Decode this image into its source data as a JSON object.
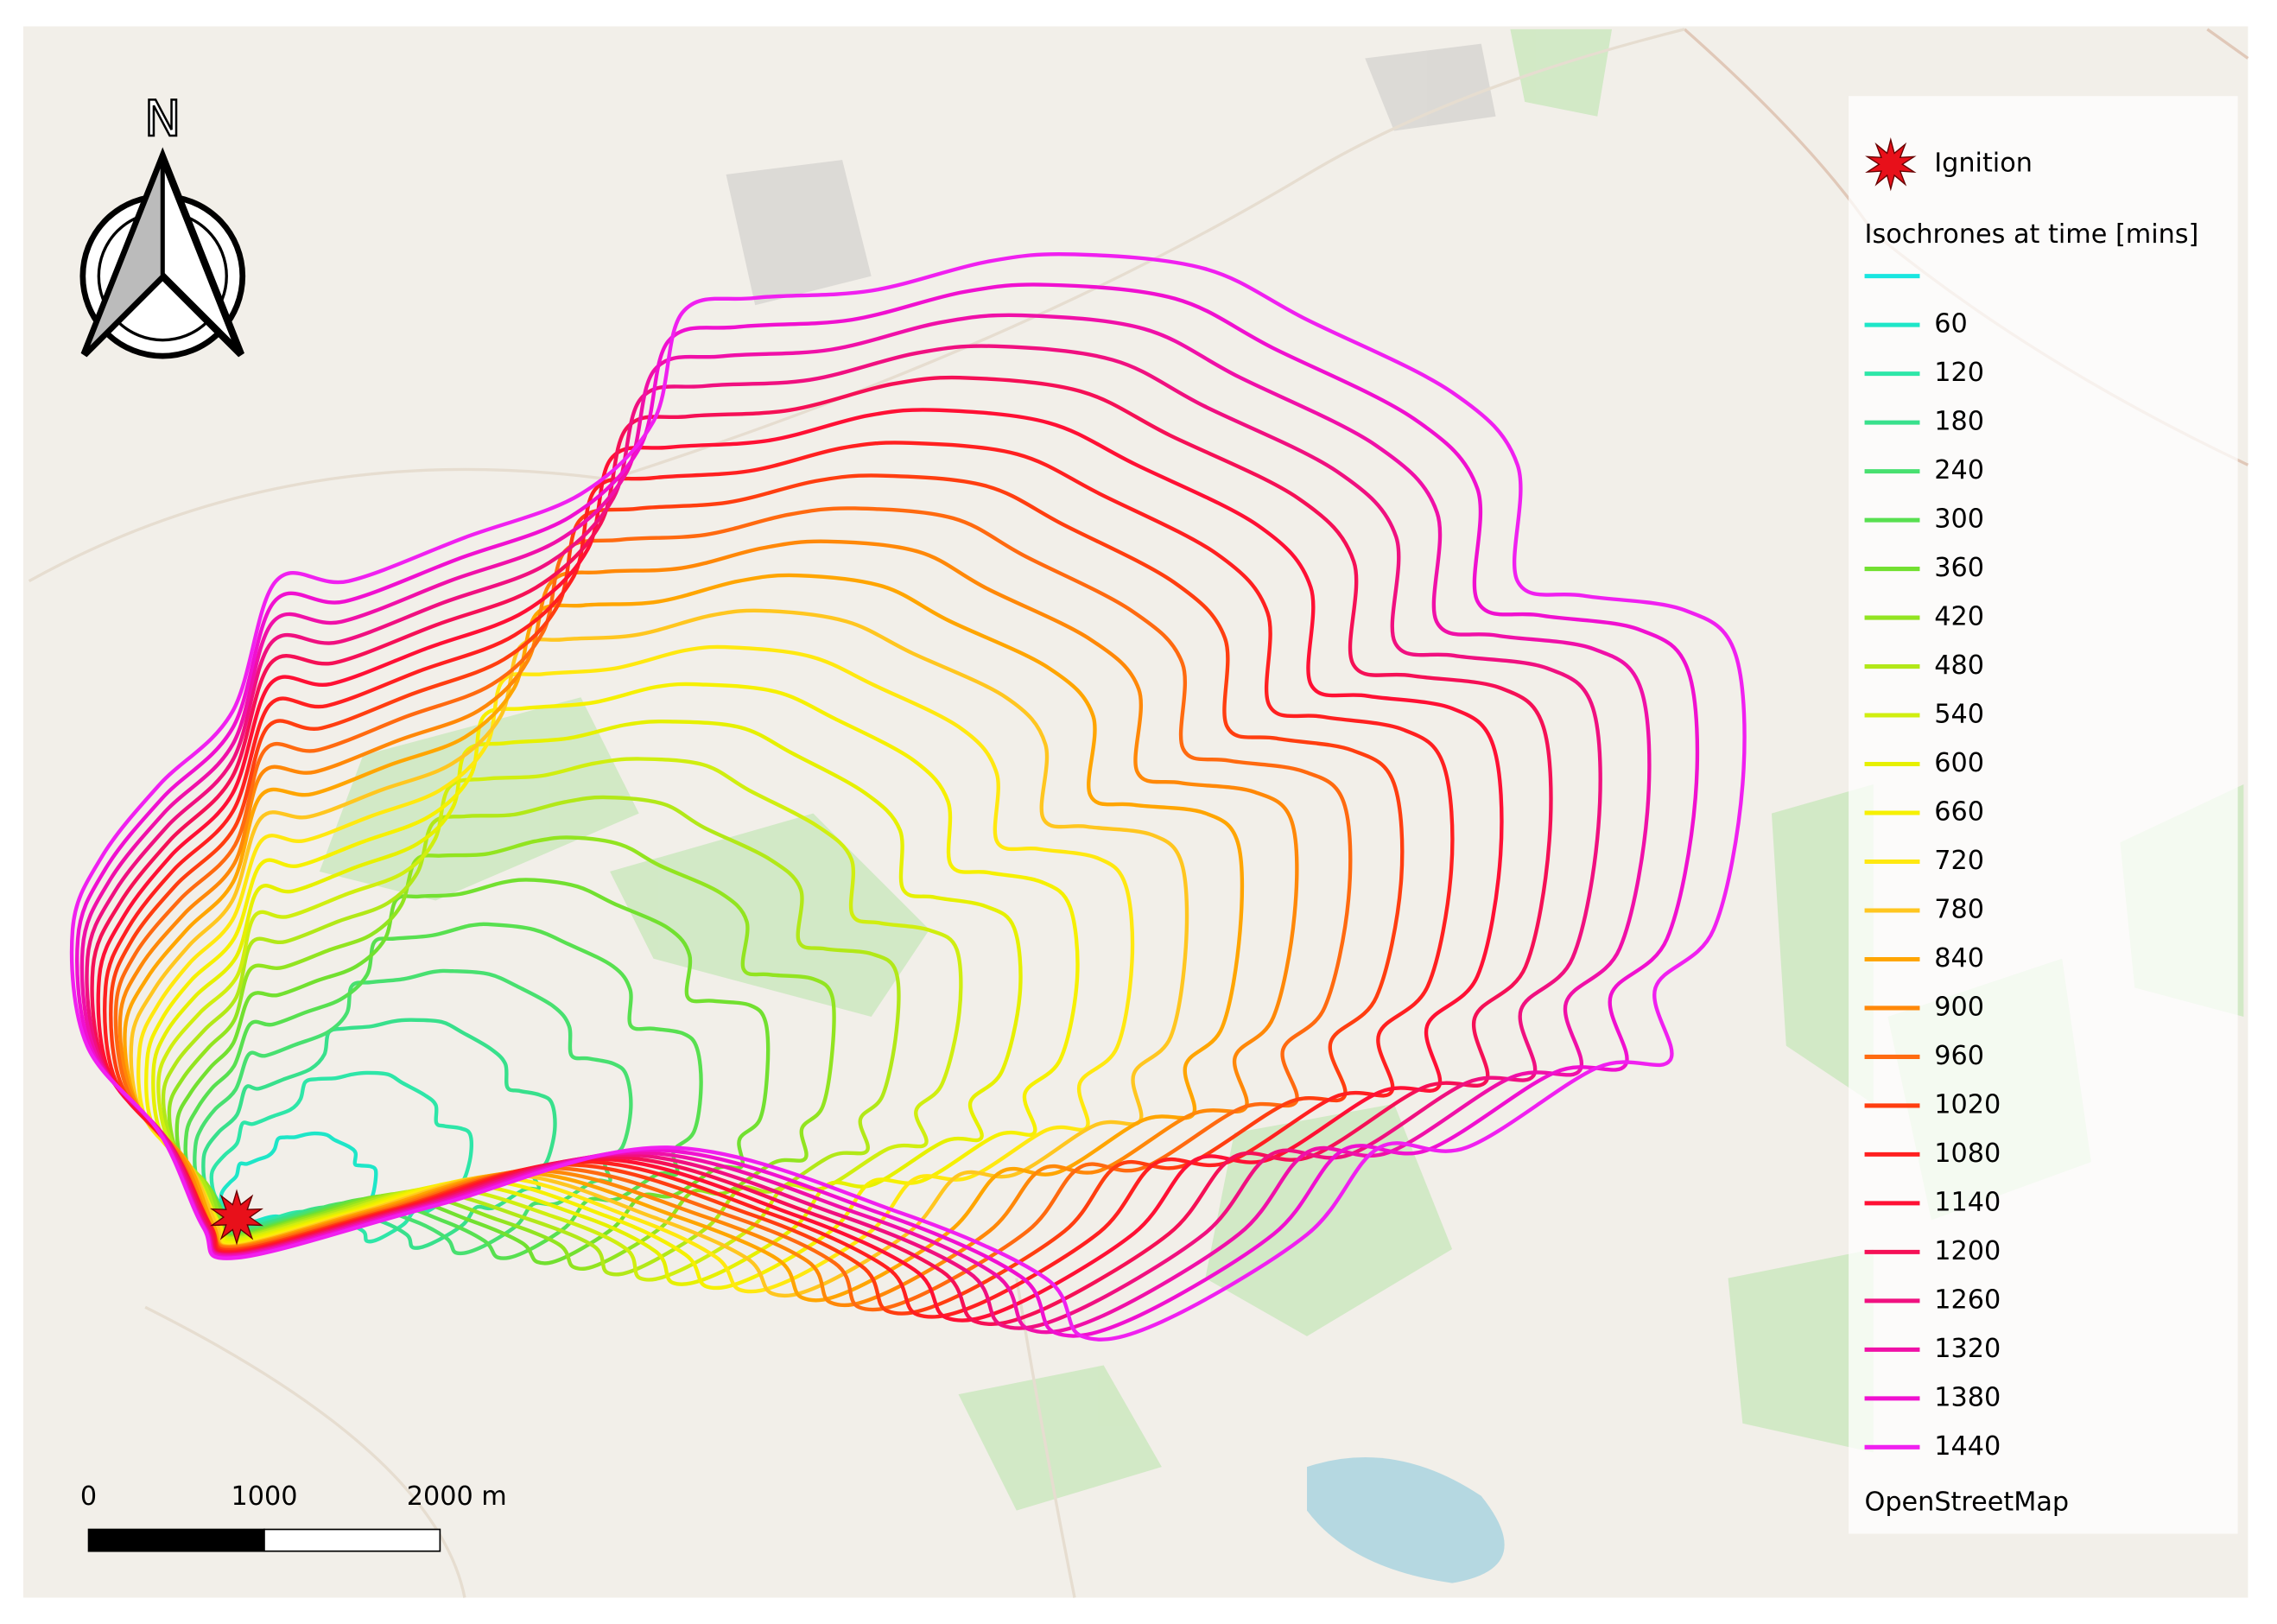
{
  "north_arrow": {
    "label": "N"
  },
  "legend": {
    "ignition": "Ignition",
    "title": "Isochrones at time [mins]",
    "items": [
      {
        "color": "#19e6e0"
      },
      {
        "label": "60",
        "color": "#1ee6c8"
      },
      {
        "label": "120",
        "color": "#2ee6a8"
      },
      {
        "label": "180",
        "color": "#38e08c"
      },
      {
        "label": "240",
        "color": "#48e070"
      },
      {
        "label": "300",
        "color": "#58e050"
      },
      {
        "label": "360",
        "color": "#72e030"
      },
      {
        "label": "420",
        "color": "#92e420"
      },
      {
        "label": "480",
        "color": "#b2e818"
      },
      {
        "label": "540",
        "color": "#d0ee10"
      },
      {
        "label": "600",
        "color": "#e6f000"
      },
      {
        "label": "660",
        "color": "#f6f000"
      },
      {
        "label": "720",
        "color": "#ffe810"
      },
      {
        "label": "780",
        "color": "#ffc620"
      },
      {
        "label": "840",
        "color": "#ffa500"
      },
      {
        "label": "900",
        "color": "#ff8808"
      },
      {
        "label": "960",
        "color": "#ff6a10"
      },
      {
        "label": "1020",
        "color": "#ff3e10"
      },
      {
        "label": "1080",
        "color": "#ff2020"
      },
      {
        "label": "1140",
        "color": "#ff1034"
      },
      {
        "label": "1200",
        "color": "#f51056"
      },
      {
        "label": "1260",
        "color": "#f01080"
      },
      {
        "label": "1320",
        "color": "#f010a8"
      },
      {
        "label": "1380",
        "color": "#f010d0"
      },
      {
        "label": "1440",
        "color": "#f020f0"
      }
    ],
    "source": "OpenStreetMap"
  },
  "scale_bar": {
    "labels": [
      "0",
      "1000",
      "2000 m"
    ]
  }
}
